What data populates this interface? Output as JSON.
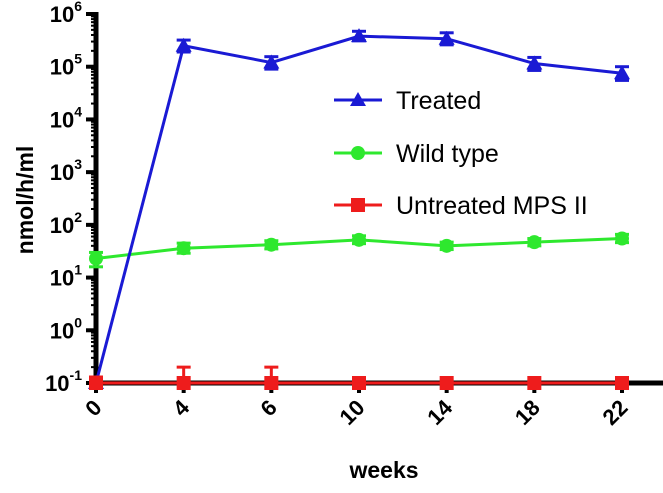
{
  "chart_data": {
    "type": "line",
    "title": "",
    "xlabel": "weeks",
    "ylabel": "nmol/h/ml",
    "yscale": "log",
    "ylim": [
      0.1,
      1000000
    ],
    "categories": [
      "0",
      "4",
      "6",
      "10",
      "14",
      "18",
      "22"
    ],
    "y_ticks": [
      {
        "base": "10",
        "exp": "-1"
      },
      {
        "base": "10",
        "exp": "0"
      },
      {
        "base": "10",
        "exp": "1"
      },
      {
        "base": "10",
        "exp": "2"
      },
      {
        "base": "10",
        "exp": "3"
      },
      {
        "base": "10",
        "exp": "4"
      },
      {
        "base": "10",
        "exp": "5"
      },
      {
        "base": "10",
        "exp": "6"
      }
    ],
    "legend_position": "center-right",
    "series": [
      {
        "name": "Treated",
        "color": "#1a1ad4",
        "marker": "triangle",
        "values": [
          0.1,
          250000,
          120000,
          380000,
          340000,
          115000,
          75000
        ],
        "err_hi": [
          0.1,
          320000,
          155000,
          470000,
          440000,
          150000,
          100000
        ],
        "err_lo": [
          0.1,
          190000,
          90000,
          310000,
          260000,
          85000,
          55000
        ]
      },
      {
        "name": "Wild type",
        "color": "#2ee82e",
        "marker": "circle",
        "values": [
          23,
          36,
          42,
          52,
          40,
          47,
          55
        ],
        "err_hi": [
          30,
          45,
          50,
          62,
          47,
          55,
          66
        ],
        "err_lo": [
          16,
          29,
          35,
          44,
          34,
          40,
          46
        ]
      },
      {
        "name": "Untreated MPS II",
        "color": "#ee1c1c",
        "marker": "square",
        "values": [
          0.1,
          0.1,
          0.1,
          0.1,
          0.1,
          0.1,
          0.1
        ],
        "err_hi": [
          0.13,
          0.2,
          0.2,
          0.1,
          0.1,
          0.1,
          0.1
        ],
        "err_lo": [
          0.1,
          0.1,
          0.1,
          0.1,
          0.1,
          0.1,
          0.1
        ]
      }
    ]
  }
}
